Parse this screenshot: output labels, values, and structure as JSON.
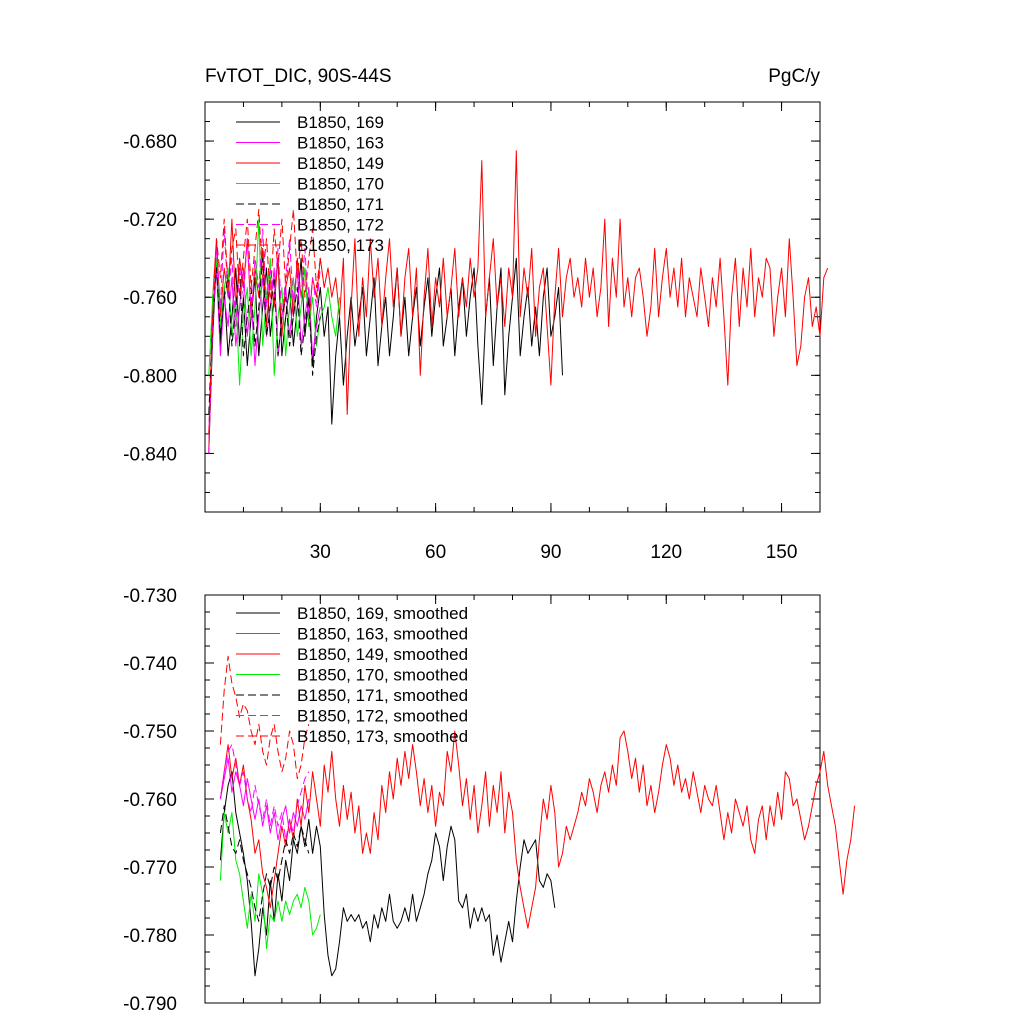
{
  "chart_data": [
    {
      "type": "line",
      "title": "FvTOT_DIC, 90S-44S",
      "units_label": "PgC/y",
      "xlim": [
        0,
        160
      ],
      "ylim": [
        -0.87,
        -0.66
      ],
      "x_ticks": [
        30,
        60,
        90,
        120,
        150
      ],
      "y_ticks": [
        -0.68,
        -0.72,
        -0.76,
        -0.8,
        -0.84
      ],
      "y_tick_labels": [
        "-0.680",
        "-0.720",
        "-0.760",
        "-0.800",
        "-0.840"
      ],
      "legend_placement": "top-left",
      "series": [
        {
          "name": "B1850, 169",
          "color": "#000000",
          "dash": "solid",
          "x_start": 1,
          "values": [
            -0.838,
            -0.78,
            -0.74,
            -0.785,
            -0.755,
            -0.79,
            -0.77,
            -0.745,
            -0.785,
            -0.76,
            -0.795,
            -0.77,
            -0.75,
            -0.79,
            -0.765,
            -0.745,
            -0.78,
            -0.76,
            -0.74,
            -0.79,
            -0.77,
            -0.755,
            -0.785,
            -0.765,
            -0.74,
            -0.78,
            -0.76,
            -0.795,
            -0.77,
            -0.755,
            -0.78,
            -0.765,
            -0.825,
            -0.79,
            -0.77,
            -0.805,
            -0.78,
            -0.76,
            -0.785,
            -0.77,
            -0.755,
            -0.79,
            -0.77,
            -0.75,
            -0.795,
            -0.775,
            -0.76,
            -0.79,
            -0.77,
            -0.745,
            -0.78,
            -0.76,
            -0.79,
            -0.77,
            -0.755,
            -0.785,
            -0.765,
            -0.75,
            -0.78,
            -0.76,
            -0.745,
            -0.785,
            -0.77,
            -0.755,
            -0.79,
            -0.765,
            -0.75,
            -0.78,
            -0.76,
            -0.745,
            -0.785,
            -0.815,
            -0.77,
            -0.75,
            -0.795,
            -0.765,
            -0.745,
            -0.81,
            -0.78,
            -0.76,
            -0.74,
            -0.79,
            -0.77,
            -0.755,
            -0.785,
            -0.765,
            -0.79,
            -0.76,
            -0.745,
            -0.78,
            -0.77,
            -0.755,
            -0.8
          ]
        },
        {
          "name": "B1850, 163",
          "color": "#ff00ff",
          "dash": "solid",
          "x_start": 1,
          "values": [
            -0.83,
            -0.77,
            -0.745,
            -0.79,
            -0.76,
            -0.775,
            -0.75,
            -0.785,
            -0.765,
            -0.745,
            -0.78,
            -0.76,
            -0.795,
            -0.77,
            -0.75,
            -0.78,
            -0.765,
            -0.745,
            -0.79,
            -0.77,
            -0.755,
            -0.78,
            -0.76,
            -0.745,
            -0.785,
            -0.77,
            -0.755,
            -0.79,
            -0.775,
            -0.765
          ]
        },
        {
          "name": "B1850, 149",
          "color": "#ff0000",
          "dash": "solid",
          "x_start": 1,
          "values": [
            -0.84,
            -0.76,
            -0.73,
            -0.77,
            -0.745,
            -0.76,
            -0.72,
            -0.765,
            -0.74,
            -0.755,
            -0.73,
            -0.77,
            -0.745,
            -0.76,
            -0.735,
            -0.775,
            -0.75,
            -0.765,
            -0.74,
            -0.78,
            -0.755,
            -0.745,
            -0.77,
            -0.74,
            -0.76,
            -0.745,
            -0.775,
            -0.75,
            -0.76,
            -0.74,
            -0.755,
            -0.745,
            -0.76,
            -0.75,
            -0.77,
            -0.74,
            -0.82,
            -0.765,
            -0.73,
            -0.78,
            -0.75,
            -0.77,
            -0.73,
            -0.76,
            -0.74,
            -0.775,
            -0.75,
            -0.73,
            -0.765,
            -0.745,
            -0.78,
            -0.75,
            -0.735,
            -0.77,
            -0.745,
            -0.8,
            -0.76,
            -0.735,
            -0.775,
            -0.75,
            -0.765,
            -0.74,
            -0.77,
            -0.755,
            -0.735,
            -0.77,
            -0.75,
            -0.765,
            -0.74,
            -0.76,
            -0.745,
            -0.69,
            -0.77,
            -0.75,
            -0.73,
            -0.765,
            -0.75,
            -0.775,
            -0.745,
            -0.76,
            -0.685,
            -0.77,
            -0.745,
            -0.76,
            -0.735,
            -0.78,
            -0.755,
            -0.745,
            -0.775,
            -0.805,
            -0.76,
            -0.735,
            -0.77,
            -0.75,
            -0.74,
            -0.76,
            -0.75,
            -0.765,
            -0.74,
            -0.76,
            -0.745,
            -0.77,
            -0.755,
            -0.72,
            -0.775,
            -0.74,
            -0.76,
            -0.72,
            -0.765,
            -0.75,
            -0.77,
            -0.75,
            -0.745,
            -0.76,
            -0.78,
            -0.765,
            -0.735,
            -0.77,
            -0.75,
            -0.735,
            -0.76,
            -0.745,
            -0.765,
            -0.74,
            -0.77,
            -0.75,
            -0.76,
            -0.77,
            -0.745,
            -0.76,
            -0.775,
            -0.75,
            -0.765,
            -0.74,
            -0.77,
            -0.805,
            -0.76,
            -0.74,
            -0.775,
            -0.745,
            -0.765,
            -0.735,
            -0.77,
            -0.75,
            -0.76,
            -0.74,
            -0.745,
            -0.78,
            -0.76,
            -0.745,
            -0.77,
            -0.73,
            -0.76,
            -0.795,
            -0.785,
            -0.76,
            -0.75,
            -0.775,
            -0.765,
            -0.78,
            -0.75,
            -0.745
          ]
        },
        {
          "name": "B1850, 170",
          "color": "#00ee00",
          "dash": "solid",
          "x_start": 1,
          "values": [
            -0.8,
            -0.76,
            -0.74,
            -0.775,
            -0.755,
            -0.745,
            -0.78,
            -0.76,
            -0.805,
            -0.77,
            -0.755,
            -0.79,
            -0.765,
            -0.72,
            -0.785,
            -0.76,
            -0.74,
            -0.8,
            -0.77,
            -0.755,
            -0.79,
            -0.765,
            -0.75,
            -0.78,
            -0.765,
            -0.745,
            -0.775,
            -0.76,
            -0.785,
            -0.77,
            -0.765,
            -0.755,
            -0.77,
            -0.78,
            -0.76
          ]
        },
        {
          "name": "B1850, 171",
          "color": "#000000",
          "dash": "dashed",
          "x_start": 1,
          "values": [
            -0.82,
            -0.77,
            -0.745,
            -0.78,
            -0.76,
            -0.75,
            -0.785,
            -0.765,
            -0.745,
            -0.79,
            -0.77,
            -0.755,
            -0.785,
            -0.765,
            -0.74,
            -0.78,
            -0.765,
            -0.75,
            -0.79,
            -0.77,
            -0.76,
            -0.785,
            -0.77,
            -0.755,
            -0.79,
            -0.775,
            -0.76,
            -0.8,
            -0.78,
            -0.77
          ]
        },
        {
          "name": "B1850, 172",
          "color": "#ff00ff",
          "dash": "dashed",
          "x_start": 1,
          "values": [
            -0.84,
            -0.775,
            -0.735,
            -0.765,
            -0.725,
            -0.76,
            -0.74,
            -0.775,
            -0.745,
            -0.76,
            -0.73,
            -0.77,
            -0.74,
            -0.755,
            -0.725,
            -0.765,
            -0.745,
            -0.76,
            -0.735,
            -0.77,
            -0.75,
            -0.73,
            -0.765,
            -0.745,
            -0.76,
            -0.735,
            -0.77,
            -0.75,
            -0.765,
            -0.745
          ]
        },
        {
          "name": "B1850, 173",
          "color": "#ff0000",
          "dash": "dashed",
          "x_start": 1,
          "values": [
            -0.83,
            -0.77,
            -0.73,
            -0.75,
            -0.72,
            -0.755,
            -0.735,
            -0.725,
            -0.76,
            -0.74,
            -0.72,
            -0.755,
            -0.735,
            -0.715,
            -0.75,
            -0.73,
            -0.76,
            -0.725,
            -0.745,
            -0.72,
            -0.755,
            -0.735,
            -0.715,
            -0.75,
            -0.73,
            -0.76,
            -0.74,
            -0.725,
            -0.755,
            -0.74
          ]
        }
      ]
    },
    {
      "type": "line",
      "xlim": [
        0,
        160
      ],
      "ylim": [
        -0.79,
        -0.73
      ],
      "x_ticks": [
        30,
        60,
        90,
        120,
        150
      ],
      "y_ticks": [
        -0.73,
        -0.74,
        -0.75,
        -0.76,
        -0.77,
        -0.78,
        -0.79
      ],
      "y_tick_labels": [
        "-0.730",
        "-0.740",
        "-0.750",
        "-0.760",
        "-0.770",
        "-0.780",
        "-0.790"
      ],
      "legend_placement": "top-left",
      "series": [
        {
          "name": "B1850, 169, smoothed",
          "color": "#000000",
          "dash": "solid",
          "x_start": 4,
          "values": [
            -0.769,
            -0.762,
            -0.758,
            -0.756,
            -0.762,
            -0.765,
            -0.768,
            -0.772,
            -0.778,
            -0.786,
            -0.782,
            -0.776,
            -0.78,
            -0.772,
            -0.778,
            -0.771,
            -0.775,
            -0.769,
            -0.772,
            -0.766,
            -0.768,
            -0.764,
            -0.767,
            -0.763,
            -0.768,
            -0.764,
            -0.767,
            -0.777,
            -0.783,
            -0.786,
            -0.785,
            -0.781,
            -0.776,
            -0.778,
            -0.777,
            -0.778,
            -0.777,
            -0.779,
            -0.778,
            -0.781,
            -0.777,
            -0.779,
            -0.776,
            -0.778,
            -0.774,
            -0.778,
            -0.779,
            -0.778,
            -0.776,
            -0.778,
            -0.774,
            -0.778,
            -0.776,
            -0.774,
            -0.771,
            -0.769,
            -0.765,
            -0.767,
            -0.772,
            -0.767,
            -0.764,
            -0.766,
            -0.775,
            -0.776,
            -0.774,
            -0.779,
            -0.776,
            -0.778,
            -0.776,
            -0.778,
            -0.777,
            -0.783,
            -0.78,
            -0.784,
            -0.781,
            -0.778,
            -0.781,
            -0.775,
            -0.77,
            -0.766,
            -0.768,
            -0.767,
            -0.766,
            -0.772,
            -0.773,
            -0.771,
            -0.772,
            -0.776
          ]
        },
        {
          "name": "B1850, 163, smoothed",
          "color": "#ff00ff",
          "dash": "solid",
          "x_start": 4,
          "values": [
            -0.76,
            -0.757,
            -0.754,
            -0.759,
            -0.756,
            -0.758,
            -0.761,
            -0.757,
            -0.76,
            -0.763,
            -0.76,
            -0.764,
            -0.761,
            -0.765,
            -0.762,
            -0.766,
            -0.763,
            -0.761,
            -0.765,
            -0.762,
            -0.764,
            -0.761,
            -0.763,
            -0.76
          ]
        },
        {
          "name": "B1850, 149, smoothed",
          "color": "#ff0000",
          "dash": "solid",
          "x_start": 4,
          "values": [
            -0.76,
            -0.756,
            -0.752,
            -0.757,
            -0.754,
            -0.758,
            -0.755,
            -0.76,
            -0.763,
            -0.768,
            -0.766,
            -0.771,
            -0.773,
            -0.776,
            -0.772,
            -0.768,
            -0.764,
            -0.767,
            -0.763,
            -0.766,
            -0.76,
            -0.764,
            -0.758,
            -0.762,
            -0.756,
            -0.76,
            -0.764,
            -0.755,
            -0.759,
            -0.753,
            -0.76,
            -0.764,
            -0.758,
            -0.763,
            -0.759,
            -0.765,
            -0.761,
            -0.768,
            -0.765,
            -0.768,
            -0.762,
            -0.766,
            -0.758,
            -0.762,
            -0.756,
            -0.76,
            -0.754,
            -0.758,
            -0.753,
            -0.757,
            -0.752,
            -0.756,
            -0.761,
            -0.757,
            -0.762,
            -0.758,
            -0.764,
            -0.759,
            -0.761,
            -0.753,
            -0.756,
            -0.75,
            -0.755,
            -0.761,
            -0.757,
            -0.763,
            -0.758,
            -0.765,
            -0.761,
            -0.756,
            -0.764,
            -0.758,
            -0.762,
            -0.756,
            -0.765,
            -0.759,
            -0.762,
            -0.769,
            -0.773,
            -0.776,
            -0.779,
            -0.776,
            -0.773,
            -0.766,
            -0.76,
            -0.763,
            -0.758,
            -0.762,
            -0.77,
            -0.768,
            -0.764,
            -0.766,
            -0.764,
            -0.762,
            -0.759,
            -0.761,
            -0.757,
            -0.759,
            -0.762,
            -0.758,
            -0.756,
            -0.759,
            -0.755,
            -0.758,
            -0.751,
            -0.75,
            -0.753,
            -0.757,
            -0.754,
            -0.759,
            -0.755,
            -0.761,
            -0.758,
            -0.762,
            -0.759,
            -0.755,
            -0.752,
            -0.754,
            -0.758,
            -0.755,
            -0.759,
            -0.757,
            -0.76,
            -0.756,
            -0.759,
            -0.762,
            -0.758,
            -0.76,
            -0.761,
            -0.758,
            -0.762,
            -0.766,
            -0.762,
            -0.765,
            -0.76,
            -0.762,
            -0.764,
            -0.761,
            -0.766,
            -0.768,
            -0.763,
            -0.761,
            -0.766,
            -0.761,
            -0.764,
            -0.759,
            -0.763,
            -0.756,
            -0.757,
            -0.761,
            -0.76,
            -0.763,
            -0.766,
            -0.764,
            -0.761,
            -0.758,
            -0.756,
            -0.753,
            -0.758,
            -0.761,
            -0.764,
            -0.769,
            -0.774,
            -0.769,
            -0.766,
            -0.761
          ]
        },
        {
          "name": "B1850, 170, smoothed",
          "color": "#00ee00",
          "dash": "solid",
          "x_start": 4,
          "values": [
            -0.772,
            -0.762,
            -0.765,
            -0.762,
            -0.769,
            -0.771,
            -0.775,
            -0.779,
            -0.774,
            -0.778,
            -0.771,
            -0.774,
            -0.782,
            -0.777,
            -0.778,
            -0.775,
            -0.778,
            -0.775,
            -0.777,
            -0.775,
            -0.774,
            -0.776,
            -0.773,
            -0.775,
            -0.78,
            -0.779,
            -0.777
          ]
        },
        {
          "name": "B1850, 171, smoothed",
          "color": "#000000",
          "dash": "dashed",
          "x_start": 4,
          "values": [
            -0.765,
            -0.761,
            -0.764,
            -0.767,
            -0.768,
            -0.766,
            -0.769,
            -0.771,
            -0.773,
            -0.776,
            -0.778,
            -0.774,
            -0.771,
            -0.773,
            -0.77,
            -0.772,
            -0.769,
            -0.766,
            -0.768,
            -0.765,
            -0.767,
            -0.764,
            -0.766,
            -0.768
          ]
        },
        {
          "name": "B1850, 172, smoothed",
          "color": "#ff00ff",
          "dash": "dashed",
          "x_start": 4,
          "values": [
            -0.76,
            -0.756,
            -0.753,
            -0.752,
            -0.755,
            -0.758,
            -0.756,
            -0.76,
            -0.762,
            -0.758,
            -0.761,
            -0.763,
            -0.76,
            -0.764,
            -0.761,
            -0.764,
            -0.762,
            -0.766,
            -0.763,
            -0.765,
            -0.761,
            -0.759,
            -0.757,
            -0.756
          ]
        },
        {
          "name": "B1850, 173, smoothed",
          "color": "#ff0000",
          "dash": "dashed",
          "x_start": 4,
          "values": [
            -0.752,
            -0.744,
            -0.739,
            -0.743,
            -0.745,
            -0.748,
            -0.746,
            -0.747,
            -0.75,
            -0.752,
            -0.749,
            -0.753,
            -0.755,
            -0.751,
            -0.749,
            -0.753,
            -0.756,
            -0.754,
            -0.75,
            -0.752,
            -0.757,
            -0.755,
            -0.751,
            -0.749
          ]
        }
      ]
    }
  ]
}
